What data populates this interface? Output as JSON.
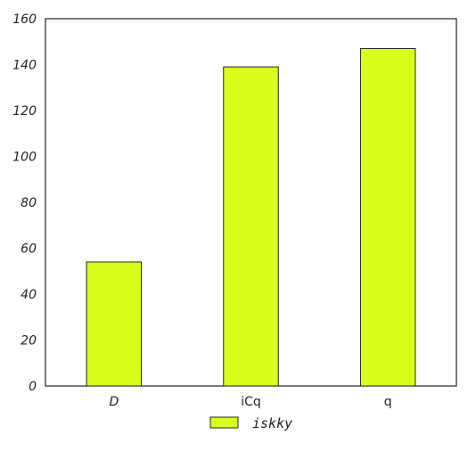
{
  "chart_data": {
    "type": "bar",
    "categories": [
      "D",
      "iCq",
      "q"
    ],
    "series": [
      {
        "name": "iskky",
        "values": [
          54,
          139,
          147
        ],
        "color": "#dbff1a"
      }
    ],
    "ylim": [
      0,
      160
    ],
    "yticks": [
      0,
      20,
      40,
      60,
      80,
      100,
      120,
      140,
      160
    ],
    "grid": false,
    "legend_position": "bottom-center"
  }
}
